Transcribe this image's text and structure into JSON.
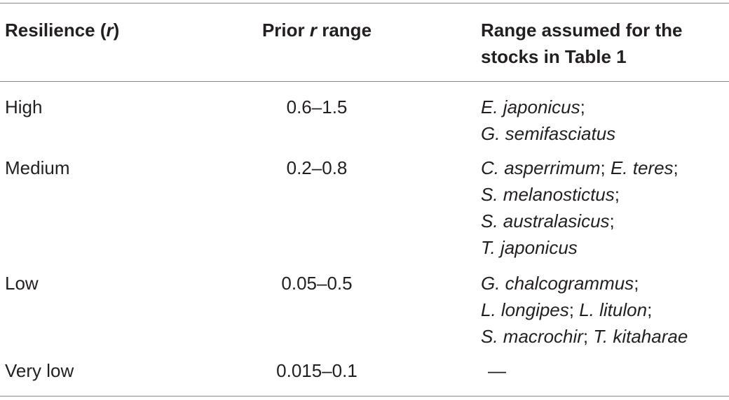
{
  "table": {
    "header": {
      "col1_text": "Resilience (",
      "col1_italic": "r",
      "col1_close": ")",
      "col2_text": "Prior ",
      "col2_italic": "r",
      "col2_tail": " range",
      "col3_line1": "Range assumed for the",
      "col3_line2": "stocks in Table 1"
    },
    "rows": [
      {
        "resilience": "High",
        "range": "0.6–1.5",
        "lines": [
          [
            {
              "t": "E. japonicus",
              "i": true
            },
            {
              "t": ";",
              "i": false
            }
          ],
          [
            {
              "t": "G. semifasciatus",
              "i": true
            }
          ]
        ]
      },
      {
        "resilience": "Medium",
        "range": "0.2–0.8",
        "lines": [
          [
            {
              "t": "C. asperrimum",
              "i": true
            },
            {
              "t": "; ",
              "i": false
            },
            {
              "t": "E. teres",
              "i": true
            },
            {
              "t": ";",
              "i": false
            }
          ],
          [
            {
              "t": "S. melanostictus",
              "i": true
            },
            {
              "t": ";",
              "i": false
            }
          ],
          [
            {
              "t": "S. australasicus",
              "i": true
            },
            {
              "t": ";",
              "i": false
            }
          ],
          [
            {
              "t": "T. japonicus",
              "i": true
            }
          ]
        ]
      },
      {
        "resilience": "Low",
        "range": "0.05–0.5",
        "lines": [
          [
            {
              "t": "G. chalcogrammus",
              "i": true
            },
            {
              "t": ";",
              "i": false
            }
          ],
          [
            {
              "t": "L. longipes",
              "i": true
            },
            {
              "t": "; ",
              "i": false
            },
            {
              "t": "L. litulon",
              "i": true
            },
            {
              "t": ";",
              "i": false
            }
          ],
          [
            {
              "t": "S. macrochir",
              "i": true
            },
            {
              "t": "; ",
              "i": false
            },
            {
              "t": "T. kitaharae",
              "i": true
            }
          ]
        ]
      },
      {
        "resilience": "Very low",
        "range": "0.015–0.1",
        "lines": [
          [
            {
              "t": "—",
              "i": false
            }
          ]
        ]
      }
    ]
  }
}
